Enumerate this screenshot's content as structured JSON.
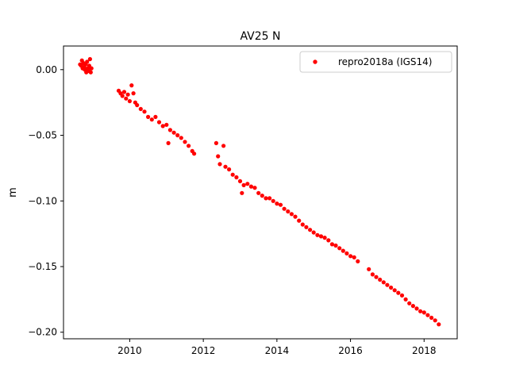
{
  "chart_data": {
    "type": "scatter",
    "title": "AV25 N",
    "xlabel": "",
    "ylabel": "m",
    "xlim": [
      2008.2,
      2018.9
    ],
    "ylim": [
      -0.205,
      0.018
    ],
    "xticks": [
      2010,
      2012,
      2014,
      2016,
      2018
    ],
    "xtick_labels": [
      "2010",
      "2012",
      "2014",
      "2016",
      "2018"
    ],
    "yticks": [
      0.0,
      -0.05,
      -0.1,
      -0.15,
      -0.2
    ],
    "ytick_labels": [
      "0.00",
      "−0.05",
      "−0.10",
      "−0.15",
      "−0.20"
    ],
    "grid": false,
    "legend_position": "top-right",
    "series": [
      {
        "name": "repro2018a (IGS14)",
        "color": "#ff0000",
        "marker": "circle",
        "points": [
          [
            2008.65,
            0.004
          ],
          [
            2008.68,
            0.003
          ],
          [
            2008.7,
            0.007
          ],
          [
            2008.72,
            0.001
          ],
          [
            2008.74,
            0.005
          ],
          [
            2008.76,
            0.002
          ],
          [
            2008.78,
            0.0
          ],
          [
            2008.8,
            0.004
          ],
          [
            2008.82,
            -0.002
          ],
          [
            2008.84,
            0.006
          ],
          [
            2008.86,
            0.001
          ],
          [
            2008.88,
            -0.001
          ],
          [
            2008.9,
            0.003
          ],
          [
            2008.92,
            0.008
          ],
          [
            2008.94,
            -0.002
          ],
          [
            2008.96,
            0.001
          ],
          [
            2009.7,
            -0.016
          ],
          [
            2009.75,
            -0.018
          ],
          [
            2009.8,
            -0.02
          ],
          [
            2009.85,
            -0.017
          ],
          [
            2009.9,
            -0.022
          ],
          [
            2009.95,
            -0.019
          ],
          [
            2010.0,
            -0.024
          ],
          [
            2010.05,
            -0.012
          ],
          [
            2010.1,
            -0.018
          ],
          [
            2010.15,
            -0.025
          ],
          [
            2010.2,
            -0.027
          ],
          [
            2010.3,
            -0.03
          ],
          [
            2010.4,
            -0.032
          ],
          [
            2010.5,
            -0.036
          ],
          [
            2010.6,
            -0.038
          ],
          [
            2010.7,
            -0.036
          ],
          [
            2010.8,
            -0.04
          ],
          [
            2010.9,
            -0.043
          ],
          [
            2011.0,
            -0.042
          ],
          [
            2011.05,
            -0.056
          ],
          [
            2011.1,
            -0.046
          ],
          [
            2011.2,
            -0.048
          ],
          [
            2011.3,
            -0.05
          ],
          [
            2011.4,
            -0.052
          ],
          [
            2011.5,
            -0.055
          ],
          [
            2011.6,
            -0.058
          ],
          [
            2011.7,
            -0.062
          ],
          [
            2011.75,
            -0.064
          ],
          [
            2012.35,
            -0.056
          ],
          [
            2012.4,
            -0.066
          ],
          [
            2012.45,
            -0.072
          ],
          [
            2012.55,
            -0.058
          ],
          [
            2012.6,
            -0.074
          ],
          [
            2012.7,
            -0.076
          ],
          [
            2012.8,
            -0.08
          ],
          [
            2012.9,
            -0.082
          ],
          [
            2013.0,
            -0.085
          ],
          [
            2013.05,
            -0.094
          ],
          [
            2013.1,
            -0.088
          ],
          [
            2013.2,
            -0.087
          ],
          [
            2013.3,
            -0.089
          ],
          [
            2013.4,
            -0.09
          ],
          [
            2013.5,
            -0.094
          ],
          [
            2013.6,
            -0.096
          ],
          [
            2013.7,
            -0.098
          ],
          [
            2013.8,
            -0.098
          ],
          [
            2013.9,
            -0.1
          ],
          [
            2014.0,
            -0.102
          ],
          [
            2014.1,
            -0.103
          ],
          [
            2014.2,
            -0.106
          ],
          [
            2014.3,
            -0.108
          ],
          [
            2014.4,
            -0.11
          ],
          [
            2014.5,
            -0.112
          ],
          [
            2014.6,
            -0.115
          ],
          [
            2014.7,
            -0.118
          ],
          [
            2014.8,
            -0.12
          ],
          [
            2014.9,
            -0.122
          ],
          [
            2015.0,
            -0.124
          ],
          [
            2015.1,
            -0.126
          ],
          [
            2015.2,
            -0.127
          ],
          [
            2015.3,
            -0.128
          ],
          [
            2015.4,
            -0.13
          ],
          [
            2015.5,
            -0.133
          ],
          [
            2015.6,
            -0.134
          ],
          [
            2015.7,
            -0.136
          ],
          [
            2015.8,
            -0.138
          ],
          [
            2015.9,
            -0.14
          ],
          [
            2016.0,
            -0.142
          ],
          [
            2016.1,
            -0.143
          ],
          [
            2016.2,
            -0.146
          ],
          [
            2016.5,
            -0.152
          ],
          [
            2016.6,
            -0.156
          ],
          [
            2016.7,
            -0.158
          ],
          [
            2016.8,
            -0.16
          ],
          [
            2016.9,
            -0.162
          ],
          [
            2017.0,
            -0.164
          ],
          [
            2017.1,
            -0.166
          ],
          [
            2017.2,
            -0.168
          ],
          [
            2017.3,
            -0.17
          ],
          [
            2017.4,
            -0.172
          ],
          [
            2017.5,
            -0.175
          ],
          [
            2017.6,
            -0.178
          ],
          [
            2017.7,
            -0.18
          ],
          [
            2017.8,
            -0.182
          ],
          [
            2017.9,
            -0.184
          ],
          [
            2018.0,
            -0.185
          ],
          [
            2018.1,
            -0.187
          ],
          [
            2018.2,
            -0.189
          ],
          [
            2018.3,
            -0.191
          ],
          [
            2018.4,
            -0.194
          ]
        ]
      }
    ]
  }
}
